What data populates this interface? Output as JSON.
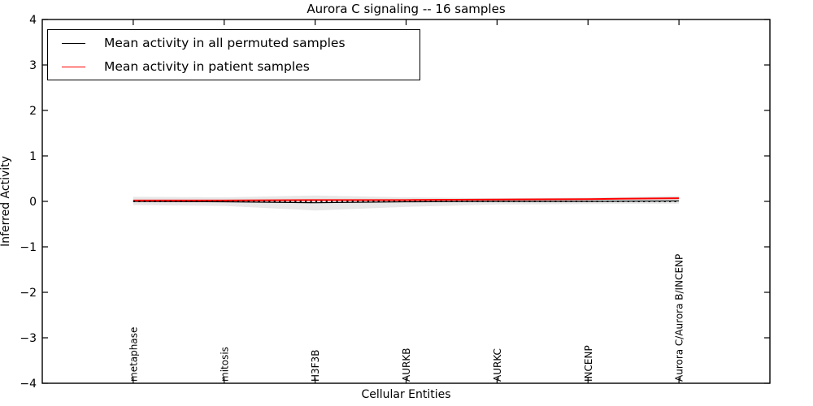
{
  "figure": {
    "background": "#ffffff",
    "frame_color": "#000000"
  },
  "chart_data": {
    "type": "line",
    "title": "Aurora C signaling -- 16 samples",
    "xlabel": "Cellular Entities",
    "ylabel": "Inferred Activity",
    "categories": [
      "metaphase",
      "mitosis",
      "H3F3B",
      "AURKB",
      "AURKC",
      "INCENP",
      "Aurora C/Aurora B/INCENP"
    ],
    "x": [
      1,
      2,
      3,
      4,
      5,
      6,
      7
    ],
    "xlim": [
      0,
      8
    ],
    "ylim": [
      -4,
      4
    ],
    "yticks": [
      4,
      3,
      2,
      1,
      0,
      -1,
      -2,
      -3,
      -4
    ],
    "ytick_labels": [
      "4",
      "3",
      "2",
      "1",
      "0",
      "−1",
      "−2",
      "−3",
      "−4"
    ],
    "grid": false,
    "legend_position": "upper left",
    "series": [
      {
        "name": "Mean activity in all permuted samples",
        "color": "#000000",
        "style": "solid",
        "values": [
          0.0,
          -0.01,
          -0.03,
          -0.01,
          0.0,
          0.0,
          0.01
        ]
      },
      {
        "name": "Mean activity in patient samples",
        "color": "#ff0000",
        "style": "solid",
        "values": [
          0.02,
          0.02,
          0.03,
          0.03,
          0.04,
          0.05,
          0.07
        ]
      }
    ],
    "zero_line": {
      "y": 0,
      "color": "#000000",
      "style": "dotted",
      "x_start": 1,
      "x_end": 7
    },
    "band": {
      "name": "permuted-samples-spread-band",
      "color": "#e7e7e7",
      "upper": [
        0.1,
        0.09,
        0.13,
        0.09,
        0.07,
        0.08,
        0.12
      ],
      "lower": [
        -0.08,
        -0.1,
        -0.2,
        -0.12,
        -0.07,
        -0.06,
        -0.05
      ]
    }
  }
}
